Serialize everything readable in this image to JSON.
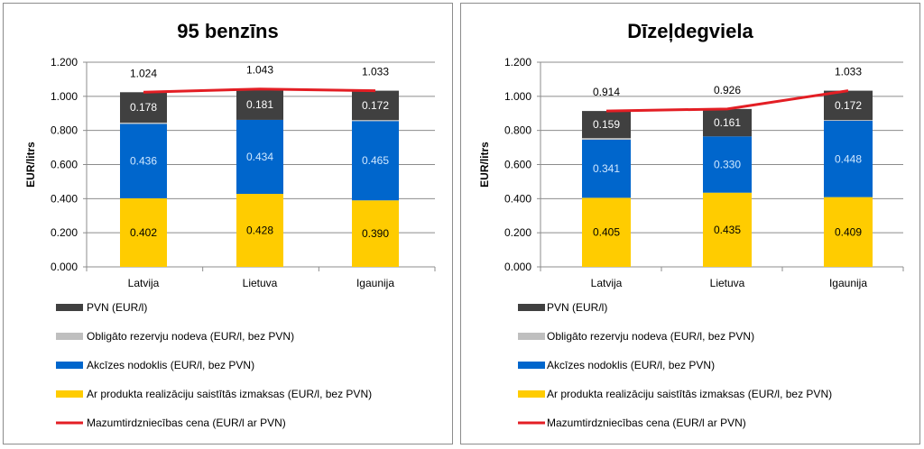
{
  "chart_data": [
    {
      "type": "bar",
      "stacked": true,
      "title": "95 benzīns",
      "ylabel": "EUR/litrs",
      "ylim": [
        0,
        1.2
      ],
      "yticks": [
        "0.000",
        "0.200",
        "0.400",
        "0.600",
        "0.800",
        "1.000",
        "1.200"
      ],
      "grid": true,
      "legend_position": "bottom",
      "categories": [
        "Latvija",
        "Lietuva",
        "Igaunija"
      ],
      "series": [
        {
          "name": "Ar produkta realizāciju saistītās izmaksas (EUR/l, bez PVN)",
          "color": "#FFCC00",
          "values": [
            0.402,
            0.428,
            0.39
          ],
          "labels": [
            "0.402",
            "0.428",
            "0.390"
          ]
        },
        {
          "name": "Akcīzes nodoklis (EUR/l, bez PVN)",
          "color": "#0066CC",
          "values": [
            0.436,
            0.434,
            0.465
          ],
          "labels": [
            "0.436",
            "0.434",
            "0.465"
          ]
        },
        {
          "name": "Obligāto rezervju nodeva (EUR/l, bez PVN)",
          "color": "#BFBFBF",
          "values": [
            0.008,
            0.0,
            0.006
          ]
        },
        {
          "name": "PVN (EUR/l)",
          "color": "#404040",
          "values": [
            0.178,
            0.181,
            0.172
          ],
          "labels": [
            "0.178",
            "0.181",
            "0.172"
          ]
        },
        {
          "name": "Mazumtirdzniecības cena (EUR/l ar PVN)",
          "color": "#E31E24",
          "type": "line",
          "values": [
            1.024,
            1.043,
            1.033
          ],
          "labels": [
            "1.024",
            "1.043",
            "1.033"
          ]
        }
      ]
    },
    {
      "type": "bar",
      "stacked": true,
      "title": "Dīzeļdegviela",
      "ylabel": "EUR/litrs",
      "ylim": [
        0,
        1.2
      ],
      "yticks": [
        "0.000",
        "0.200",
        "0.400",
        "0.600",
        "0.800",
        "1.000",
        "1.200"
      ],
      "grid": true,
      "legend_position": "bottom",
      "categories": [
        "Latvija",
        "Lietuva",
        "Igaunija"
      ],
      "series": [
        {
          "name": "Ar produkta realizāciju saistītās izmaksas (EUR/l, bez PVN)",
          "color": "#FFCC00",
          "values": [
            0.405,
            0.435,
            0.409
          ],
          "labels": [
            "0.405",
            "0.435",
            "0.409"
          ]
        },
        {
          "name": "Akcīzes nodoklis (EUR/l, bez PVN)",
          "color": "#0066CC",
          "values": [
            0.341,
            0.33,
            0.448
          ],
          "labels": [
            "0.341",
            "0.330",
            "0.448"
          ]
        },
        {
          "name": "Obligāto rezervju nodeva (EUR/l, bez PVN)",
          "color": "#BFBFBF",
          "values": [
            0.009,
            0.0,
            0.004
          ]
        },
        {
          "name": "PVN (EUR/l)",
          "color": "#404040",
          "values": [
            0.159,
            0.161,
            0.172
          ],
          "labels": [
            "0.159",
            "0.161",
            "0.172"
          ]
        },
        {
          "name": "Mazumtirdzniecības cena (EUR/l ar PVN)",
          "color": "#E31E24",
          "type": "line",
          "values": [
            0.914,
            0.926,
            1.033
          ],
          "labels": [
            "0.914",
            "0.926",
            "1.033"
          ]
        }
      ]
    }
  ]
}
